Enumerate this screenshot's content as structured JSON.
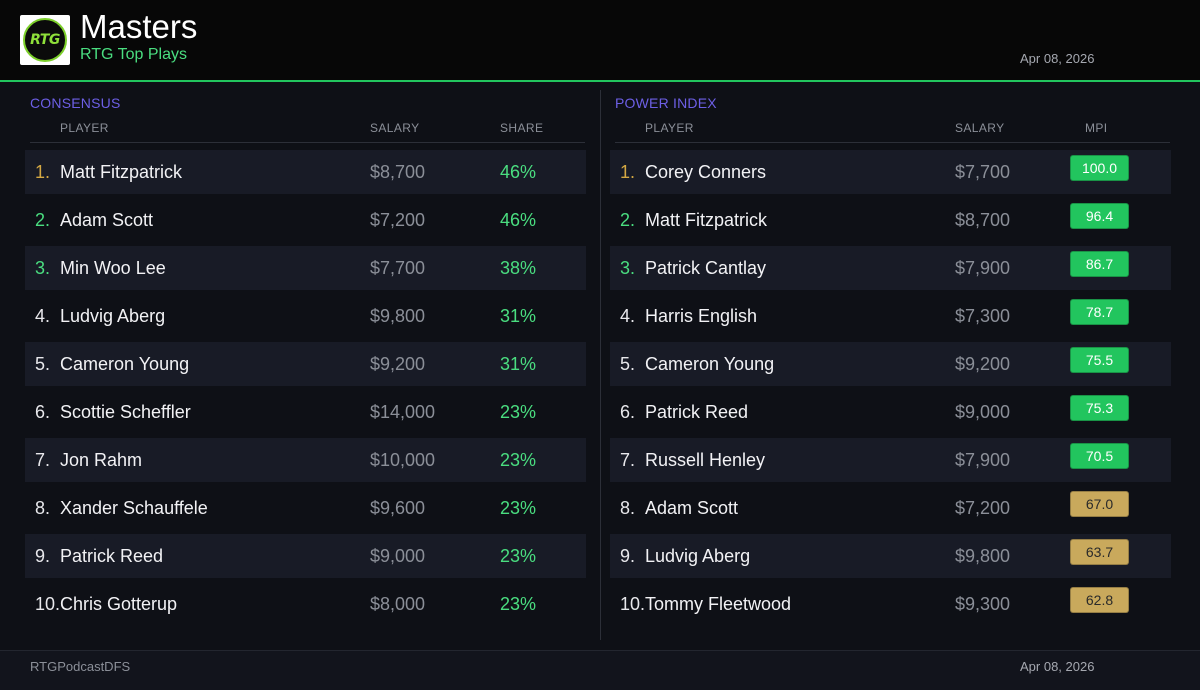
{
  "header": {
    "logo_text": "RTG",
    "title": "Masters",
    "subtitle": "RTG Top Plays",
    "date": "Apr 08, 2026"
  },
  "consensus": {
    "title": "CONSENSUS",
    "columns": {
      "player": "PLAYER",
      "salary": "SALARY",
      "share": "SHARE"
    },
    "rows": [
      {
        "rank": "1.",
        "name": "Matt Fitzpatrick",
        "salary": "$8,700",
        "share": "46%"
      },
      {
        "rank": "2.",
        "name": "Adam Scott",
        "salary": "$7,200",
        "share": "46%"
      },
      {
        "rank": "3.",
        "name": "Min Woo Lee",
        "salary": "$7,700",
        "share": "38%"
      },
      {
        "rank": "4.",
        "name": "Ludvig Aberg",
        "salary": "$9,800",
        "share": "31%"
      },
      {
        "rank": "5.",
        "name": "Cameron Young",
        "salary": "$9,200",
        "share": "31%"
      },
      {
        "rank": "6.",
        "name": "Scottie Scheffler",
        "salary": "$14,000",
        "share": "23%"
      },
      {
        "rank": "7.",
        "name": "Jon Rahm",
        "salary": "$10,000",
        "share": "23%"
      },
      {
        "rank": "8.",
        "name": "Xander Schauffele",
        "salary": "$9,600",
        "share": "23%"
      },
      {
        "rank": "9.",
        "name": "Patrick Reed",
        "salary": "$9,000",
        "share": "23%"
      },
      {
        "rank": "10.",
        "name": "Chris Gotterup",
        "salary": "$8,000",
        "share": "23%"
      }
    ]
  },
  "power_index": {
    "title": "POWER INDEX",
    "columns": {
      "player": "PLAYER",
      "salary": "SALARY",
      "mpi": "MPI"
    },
    "rows": [
      {
        "rank": "1.",
        "name": "Corey Conners",
        "salary": "$7,700",
        "mpi": "100.0"
      },
      {
        "rank": "2.",
        "name": "Matt Fitzpatrick",
        "salary": "$8,700",
        "mpi": "96.4"
      },
      {
        "rank": "3.",
        "name": "Patrick Cantlay",
        "salary": "$7,900",
        "mpi": "86.7"
      },
      {
        "rank": "4.",
        "name": "Harris English",
        "salary": "$7,300",
        "mpi": "78.7"
      },
      {
        "rank": "5.",
        "name": "Cameron Young",
        "salary": "$9,200",
        "mpi": "75.5"
      },
      {
        "rank": "6.",
        "name": "Patrick Reed",
        "salary": "$9,000",
        "mpi": "75.3"
      },
      {
        "rank": "7.",
        "name": "Russell Henley",
        "salary": "$7,900",
        "mpi": "70.5"
      },
      {
        "rank": "8.",
        "name": "Adam Scott",
        "salary": "$7,200",
        "mpi": "67.0"
      },
      {
        "rank": "9.",
        "name": "Ludvig Aberg",
        "salary": "$9,800",
        "mpi": "63.7"
      },
      {
        "rank": "10.",
        "name": "Tommy Fleetwood",
        "salary": "$9,300",
        "mpi": "62.8"
      }
    ]
  },
  "colors": {
    "accent_green": "#22c55e",
    "section_title": "#6d5fe6",
    "rank_gold": "#d4a843",
    "mpi_mid": "#c9a95c"
  },
  "footer": {
    "handle": "RTGPodcastDFS",
    "date": "Apr 08, 2026"
  }
}
